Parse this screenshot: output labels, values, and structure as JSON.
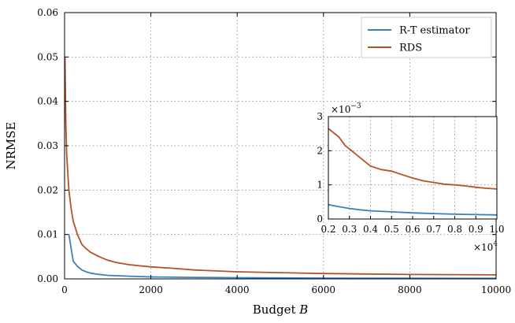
{
  "chart_data": [
    {
      "type": "line",
      "xlabel": "Budget B",
      "ylabel": "NRMSE",
      "xlim": [
        0,
        10000
      ],
      "ylim": [
        0,
        0.06
      ],
      "x_ticks": [
        0,
        2000,
        4000,
        6000,
        8000,
        10000
      ],
      "x_tick_labels": [
        "0",
        "2000",
        "4000",
        "6000",
        "8000",
        "10000"
      ],
      "y_ticks": [
        0,
        0.01,
        0.02,
        0.03,
        0.04,
        0.05,
        0.06
      ],
      "y_tick_labels": [
        "0.00",
        "0.01",
        "0.02",
        "0.03",
        "0.04",
        "0.05",
        "0.06"
      ],
      "grid": true,
      "legend_position": "top-right",
      "series": [
        {
          "name": "R-T estimator",
          "color": "#3a7fc1",
          "x": [
            100,
            200,
            300,
            400,
            500,
            600,
            800,
            1000,
            1500,
            2000,
            3000,
            4000,
            5000,
            6000,
            7000,
            8000,
            9000,
            10000
          ],
          "y": [
            0.01,
            0.004,
            0.0028,
            0.002,
            0.0016,
            0.0013,
            0.001,
            0.0008,
            0.0006,
            0.00045,
            0.00034,
            0.00026,
            0.00022,
            0.00018,
            0.00016,
            0.00014,
            0.00013,
            0.00012
          ]
        },
        {
          "name": "RDS",
          "color": "#b5522a",
          "x": [
            10,
            30,
            50,
            80,
            100,
            150,
            200,
            250,
            300,
            400,
            500,
            600,
            800,
            1000,
            1200,
            1500,
            2000,
            2500,
            3000,
            4000,
            5000,
            6000,
            7000,
            8000,
            9000,
            10000
          ],
          "y": [
            0.05,
            0.035,
            0.028,
            0.023,
            0.02,
            0.016,
            0.013,
            0.0115,
            0.01,
            0.0078,
            0.0068,
            0.006,
            0.005,
            0.0042,
            0.0037,
            0.0032,
            0.0027,
            0.0024,
            0.002,
            0.0016,
            0.0014,
            0.0012,
            0.0011,
            0.001,
            0.00095,
            0.0009
          ]
        }
      ]
    },
    {
      "type": "line",
      "role": "inset",
      "xlim": [
        0.2,
        1.0
      ],
      "ylim": [
        0,
        3
      ],
      "x_multiplier": "×10^4",
      "y_multiplier": "×10^−3",
      "x_ticks": [
        0.2,
        0.3,
        0.4,
        0.5,
        0.6,
        0.7,
        0.8,
        0.9,
        1.0
      ],
      "x_tick_labels": [
        "0.2",
        "0.3",
        "0.4",
        "0.5",
        "0.6",
        "0.7",
        "0.8",
        "0.9",
        "1.0"
      ],
      "y_ticks": [
        0,
        1,
        2,
        3
      ],
      "y_tick_labels": [
        "0",
        "1",
        "2",
        "3"
      ],
      "grid": true,
      "series": [
        {
          "color": "#3a7fc1",
          "x": [
            0.2,
            0.25,
            0.3,
            0.35,
            0.4,
            0.5,
            0.6,
            0.7,
            0.8,
            0.9,
            1.0
          ],
          "y": [
            0.42,
            0.36,
            0.31,
            0.27,
            0.24,
            0.21,
            0.18,
            0.16,
            0.14,
            0.13,
            0.12
          ]
        },
        {
          "color": "#b5522a",
          "x": [
            0.2,
            0.22,
            0.25,
            0.28,
            0.3,
            0.33,
            0.36,
            0.4,
            0.45,
            0.5,
            0.55,
            0.6,
            0.65,
            0.7,
            0.75,
            0.8,
            0.85,
            0.9,
            0.95,
            1.0
          ],
          "y": [
            2.65,
            2.55,
            2.4,
            2.15,
            2.05,
            1.9,
            1.75,
            1.55,
            1.45,
            1.4,
            1.3,
            1.2,
            1.12,
            1.07,
            1.02,
            1.0,
            0.97,
            0.93,
            0.9,
            0.88
          ]
        }
      ]
    }
  ]
}
